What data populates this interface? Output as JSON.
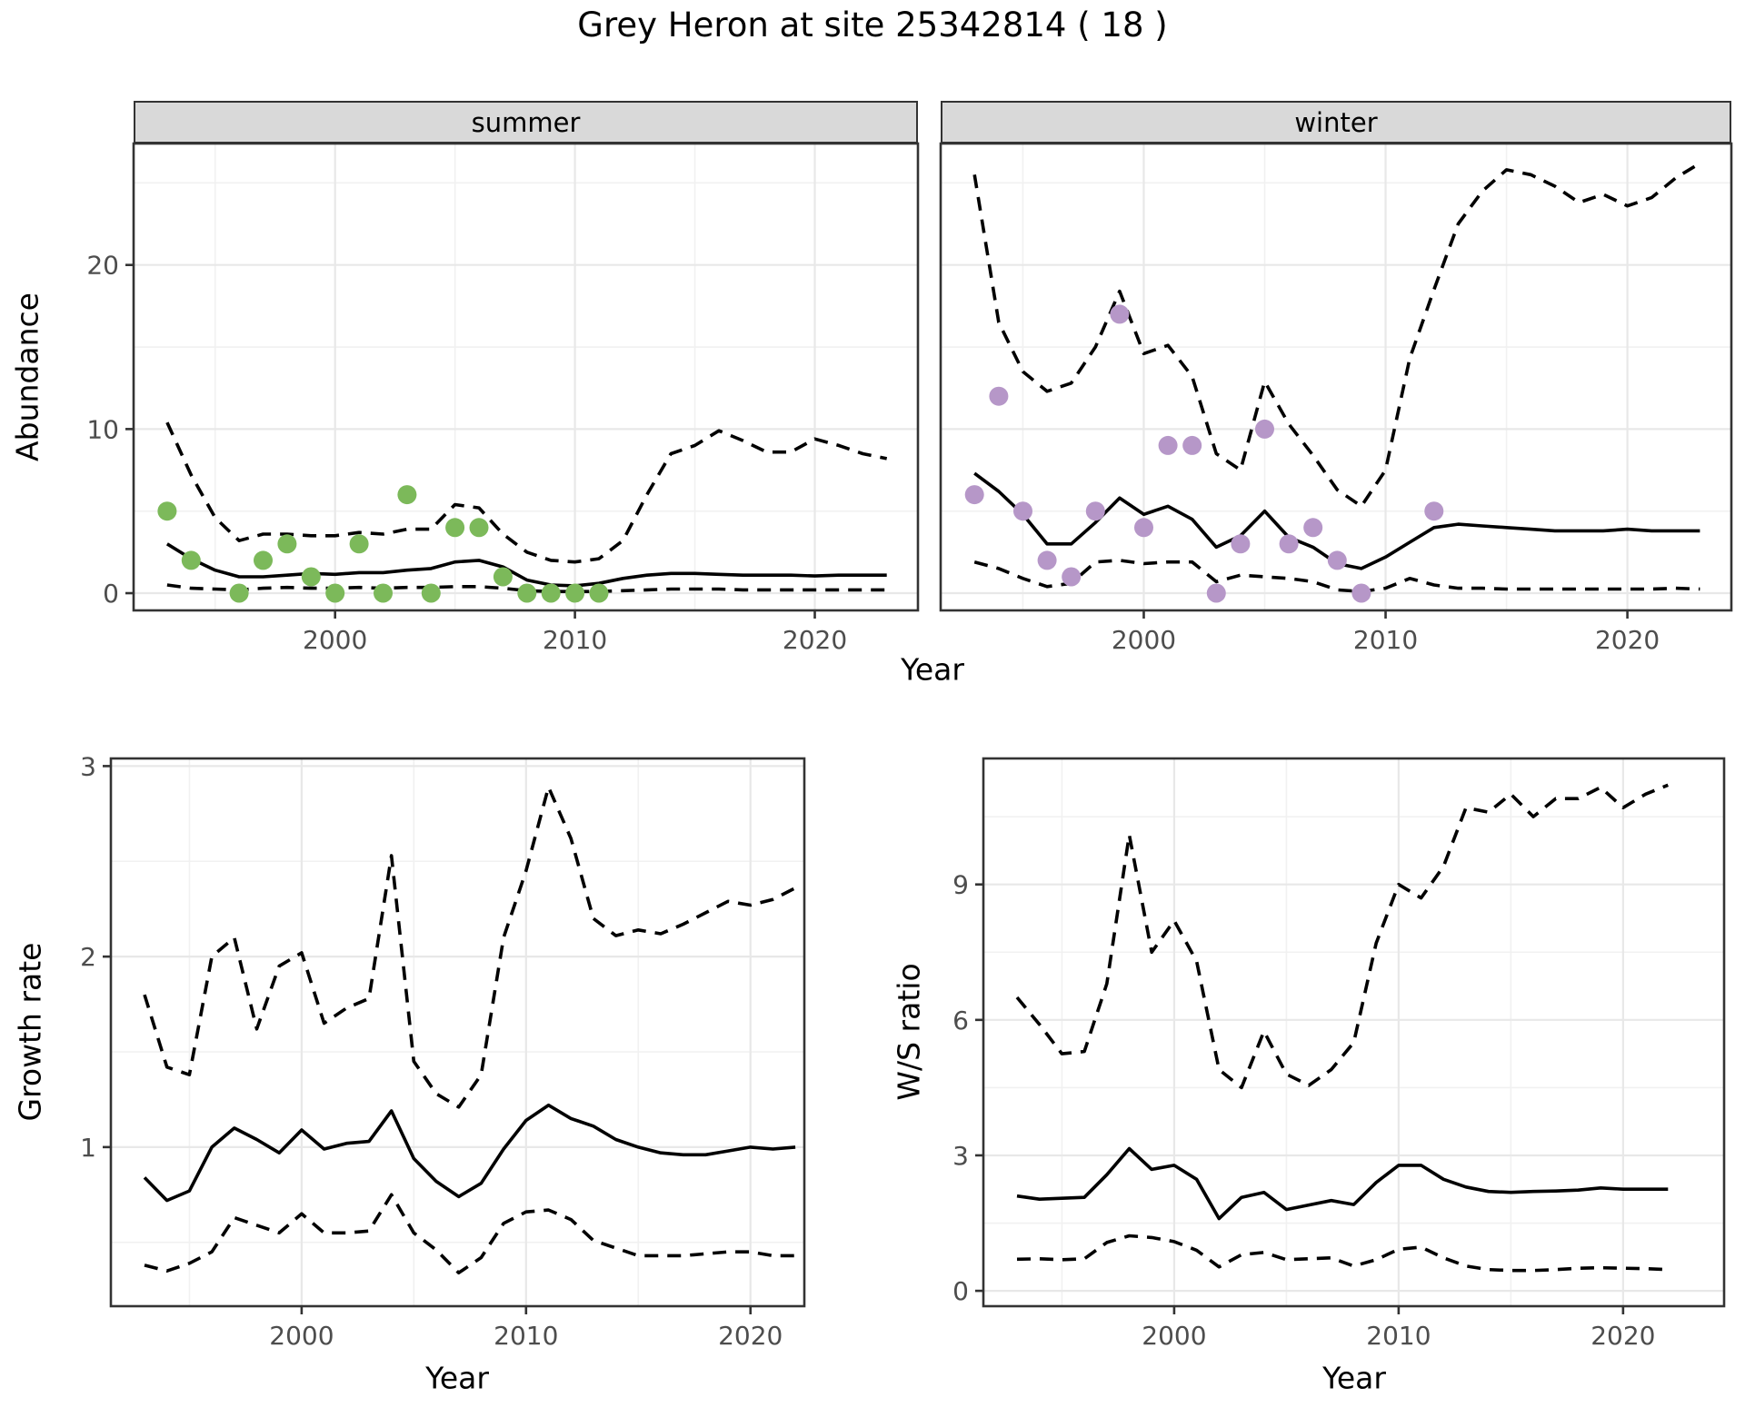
{
  "title": "Grey Heron at site 25342814 ( 18 )",
  "facets": {
    "summer": "summer",
    "winter": "winter"
  },
  "axis_titles": {
    "abundance": "Abundance",
    "year": "Year",
    "growth": "Growth rate",
    "ws": "W/S ratio"
  },
  "colors": {
    "summer_points": "#7cb95a",
    "winter_points": "#b697c8",
    "line": "#000000",
    "grid_major": "#e8e8e8",
    "grid_minor": "#f1f1f1",
    "strip_bg": "#d9d9d9",
    "panel_border": "#333333",
    "tick_label": "#4d4d4d"
  },
  "chart_data": [
    {
      "id": "summer",
      "type": "line",
      "facet": "summer",
      "xlabel": "Year",
      "ylabel": "Abundance",
      "xlim": [
        1991.6,
        2024.3
      ],
      "ylim": [
        -1.05,
        27.4
      ],
      "x_ticks": [
        2000,
        2010,
        2020
      ],
      "x_minor": [
        1995,
        2005,
        2015
      ],
      "y_ticks": [
        0,
        10,
        20
      ],
      "y_minor": [
        5,
        15,
        25
      ],
      "show_y_tick_labels": true,
      "x": [
        1993,
        1994,
        1995,
        1996,
        1997,
        1998,
        1999,
        2000,
        2001,
        2002,
        2003,
        2004,
        2005,
        2006,
        2007,
        2008,
        2009,
        2010,
        2011,
        2012,
        2013,
        2014,
        2015,
        2016,
        2017,
        2018,
        2019,
        2020,
        2021,
        2022,
        2023
      ],
      "series": [
        {
          "name": "fitted-median",
          "style": "solid",
          "values": [
            3.0,
            2.1,
            1.4,
            1.0,
            1.0,
            1.1,
            1.2,
            1.15,
            1.25,
            1.25,
            1.4,
            1.5,
            1.9,
            2.0,
            1.6,
            0.8,
            0.5,
            0.45,
            0.6,
            0.9,
            1.1,
            1.2,
            1.2,
            1.15,
            1.1,
            1.1,
            1.1,
            1.05,
            1.1,
            1.1,
            1.1
          ]
        },
        {
          "name": "upper-ci",
          "style": "dashed",
          "values": [
            10.4,
            7.2,
            4.6,
            3.2,
            3.6,
            3.6,
            3.5,
            3.5,
            3.7,
            3.6,
            3.9,
            3.9,
            5.4,
            5.2,
            3.6,
            2.5,
            2.0,
            1.9,
            2.1,
            3.2,
            6.0,
            8.5,
            9.0,
            9.9,
            9.3,
            8.6,
            8.6,
            9.4,
            9.0,
            8.5,
            8.2
          ]
        },
        {
          "name": "lower-ci",
          "style": "dashed",
          "values": [
            0.5,
            0.3,
            0.25,
            0.2,
            0.3,
            0.35,
            0.3,
            0.3,
            0.35,
            0.3,
            0.35,
            0.35,
            0.4,
            0.4,
            0.3,
            0.15,
            0.1,
            0.1,
            0.1,
            0.15,
            0.2,
            0.25,
            0.25,
            0.25,
            0.2,
            0.2,
            0.2,
            0.2,
            0.2,
            0.2,
            0.2
          ]
        }
      ],
      "points": {
        "color_key": "summer_points",
        "x": [
          1993,
          1994,
          1996,
          1997,
          1998,
          1999,
          2000,
          2001,
          2002,
          2003,
          2004,
          2005,
          2006,
          2007,
          2008,
          2009,
          2010,
          2011
        ],
        "y": [
          5,
          2,
          0,
          2,
          3,
          1,
          0,
          3,
          0,
          6,
          0,
          4,
          4,
          1,
          0,
          0,
          0,
          0
        ]
      }
    },
    {
      "id": "winter",
      "type": "line",
      "facet": "winter",
      "xlabel": "Year",
      "ylabel": "Abundance",
      "xlim": [
        1991.6,
        2024.3
      ],
      "ylim": [
        -1.05,
        27.4
      ],
      "x_ticks": [
        2000,
        2010,
        2020
      ],
      "x_minor": [
        1995,
        2005,
        2015
      ],
      "y_ticks": [
        0,
        10,
        20
      ],
      "y_minor": [
        5,
        15,
        25
      ],
      "show_y_tick_labels": false,
      "x": [
        1993,
        1994,
        1995,
        1996,
        1997,
        1998,
        1999,
        2000,
        2001,
        2002,
        2003,
        2004,
        2005,
        2006,
        2007,
        2008,
        2009,
        2010,
        2011,
        2012,
        2013,
        2014,
        2015,
        2016,
        2017,
        2018,
        2019,
        2020,
        2021,
        2022,
        2023
      ],
      "series": [
        {
          "name": "fitted-median",
          "style": "solid",
          "values": [
            7.3,
            6.2,
            4.8,
            3.0,
            3.0,
            4.3,
            5.8,
            4.8,
            5.3,
            4.5,
            2.8,
            3.5,
            5.0,
            3.4,
            2.8,
            1.8,
            1.5,
            2.2,
            3.1,
            4.0,
            4.2,
            4.1,
            4.0,
            3.9,
            3.8,
            3.8,
            3.8,
            3.9,
            3.8,
            3.8,
            3.8
          ]
        },
        {
          "name": "upper-ci",
          "style": "dashed",
          "values": [
            25.5,
            16.5,
            13.5,
            12.3,
            12.8,
            15.0,
            18.4,
            14.6,
            15.1,
            13.2,
            8.5,
            7.5,
            12.9,
            10.3,
            8.4,
            6.3,
            5.3,
            7.5,
            14.3,
            18.5,
            22.5,
            24.5,
            25.8,
            25.5,
            24.8,
            23.8,
            24.3,
            23.6,
            24.1,
            25.3,
            26.2
          ]
        },
        {
          "name": "lower-ci",
          "style": "dashed",
          "values": [
            1.9,
            1.5,
            0.9,
            0.4,
            0.6,
            1.9,
            2.0,
            1.8,
            1.9,
            1.9,
            0.7,
            1.1,
            1.0,
            0.9,
            0.7,
            0.2,
            0.1,
            0.3,
            0.9,
            0.5,
            0.3,
            0.3,
            0.25,
            0.25,
            0.25,
            0.25,
            0.25,
            0.25,
            0.25,
            0.3,
            0.25
          ]
        }
      ],
      "points": {
        "color_key": "winter_points",
        "x": [
          1993,
          1994,
          1995,
          1996,
          1997,
          1998,
          1999,
          2000,
          2001,
          2002,
          2003,
          2004,
          2005,
          2006,
          2007,
          2008,
          2009,
          2012
        ],
        "y": [
          6,
          12,
          5,
          2,
          1,
          5,
          17,
          4,
          9,
          9,
          0,
          3,
          10,
          3,
          4,
          2,
          0,
          5
        ]
      }
    },
    {
      "id": "growth",
      "type": "line",
      "xlabel": "Year",
      "ylabel": "Growth rate",
      "xlim": [
        1991.5,
        2022.4
      ],
      "ylim": [
        0.165,
        3.04
      ],
      "x_ticks": [
        2000,
        2010,
        2020
      ],
      "x_minor": [
        1995,
        2005,
        2015
      ],
      "y_ticks": [
        1,
        2,
        3
      ],
      "y_minor": [
        0.5,
        1.5,
        2.5
      ],
      "show_y_tick_labels": true,
      "x": [
        1993,
        1994,
        1995,
        1996,
        1997,
        1998,
        1999,
        2000,
        2001,
        2002,
        2003,
        2004,
        2005,
        2006,
        2007,
        2008,
        2009,
        2010,
        2011,
        2012,
        2013,
        2014,
        2015,
        2016,
        2017,
        2018,
        2019,
        2020,
        2021,
        2022
      ],
      "series": [
        {
          "name": "fitted-median",
          "style": "solid",
          "values": [
            0.84,
            0.72,
            0.77,
            1.0,
            1.1,
            1.04,
            0.97,
            1.09,
            0.99,
            1.02,
            1.03,
            1.19,
            0.94,
            0.82,
            0.74,
            0.81,
            0.99,
            1.14,
            1.22,
            1.15,
            1.11,
            1.04,
            1.0,
            0.97,
            0.96,
            0.96,
            0.98,
            1.0,
            0.99,
            1.0
          ]
        },
        {
          "name": "upper-ci",
          "style": "dashed",
          "values": [
            1.8,
            1.42,
            1.38,
            2.0,
            2.1,
            1.62,
            1.95,
            2.02,
            1.65,
            1.73,
            1.78,
            2.53,
            1.45,
            1.28,
            1.21,
            1.38,
            2.1,
            2.45,
            2.89,
            2.62,
            2.2,
            2.11,
            2.14,
            2.12,
            2.17,
            2.23,
            2.29,
            2.27,
            2.3,
            2.36
          ]
        },
        {
          "name": "lower-ci",
          "style": "dashed",
          "values": [
            0.38,
            0.35,
            0.39,
            0.45,
            0.63,
            0.59,
            0.55,
            0.65,
            0.55,
            0.55,
            0.56,
            0.75,
            0.55,
            0.46,
            0.34,
            0.42,
            0.6,
            0.66,
            0.67,
            0.62,
            0.51,
            0.47,
            0.43,
            0.43,
            0.43,
            0.44,
            0.45,
            0.45,
            0.43,
            0.43
          ]
        }
      ]
    },
    {
      "id": "ws",
      "type": "line",
      "xlabel": "Year",
      "ylabel": "W/S ratio",
      "xlim": [
        1991.5,
        2024.5
      ],
      "ylim": [
        -0.34,
        11.79
      ],
      "x_ticks": [
        2000,
        2010,
        2020
      ],
      "x_minor": [
        1995,
        2005,
        2015
      ],
      "y_ticks": [
        0,
        3,
        6,
        9
      ],
      "y_minor": [
        1.5,
        4.5,
        7.5,
        10.5
      ],
      "show_y_tick_labels": true,
      "x": [
        1993,
        1994,
        1995,
        1996,
        1997,
        1998,
        1999,
        2000,
        2001,
        2002,
        2003,
        2004,
        2005,
        2006,
        2007,
        2008,
        2009,
        2010,
        2011,
        2012,
        2013,
        2014,
        2015,
        2016,
        2017,
        2018,
        2019,
        2020,
        2021,
        2022
      ],
      "series": [
        {
          "name": "fitted-median",
          "style": "solid",
          "values": [
            2.1,
            2.03,
            2.05,
            2.07,
            2.57,
            3.15,
            2.69,
            2.78,
            2.47,
            1.6,
            2.07,
            2.18,
            1.8,
            1.9,
            2.0,
            1.91,
            2.4,
            2.78,
            2.78,
            2.47,
            2.3,
            2.2,
            2.18,
            2.2,
            2.21,
            2.23,
            2.28,
            2.25,
            2.25,
            2.25
          ]
        },
        {
          "name": "upper-ci",
          "style": "dashed",
          "values": [
            6.5,
            5.9,
            5.25,
            5.3,
            6.8,
            10.1,
            7.5,
            8.2,
            7.3,
            4.9,
            4.5,
            5.75,
            4.8,
            4.55,
            4.9,
            5.5,
            7.7,
            9.0,
            8.7,
            9.4,
            10.7,
            10.6,
            11.0,
            10.5,
            10.9,
            10.9,
            11.15,
            10.7,
            11.0,
            11.2
          ]
        },
        {
          "name": "lower-ci",
          "style": "dashed",
          "values": [
            0.7,
            0.71,
            0.69,
            0.71,
            1.07,
            1.22,
            1.18,
            1.09,
            0.9,
            0.53,
            0.8,
            0.85,
            0.69,
            0.71,
            0.73,
            0.55,
            0.69,
            0.92,
            0.97,
            0.73,
            0.55,
            0.47,
            0.45,
            0.45,
            0.47,
            0.5,
            0.51,
            0.5,
            0.49,
            0.47
          ]
        }
      ]
    }
  ]
}
